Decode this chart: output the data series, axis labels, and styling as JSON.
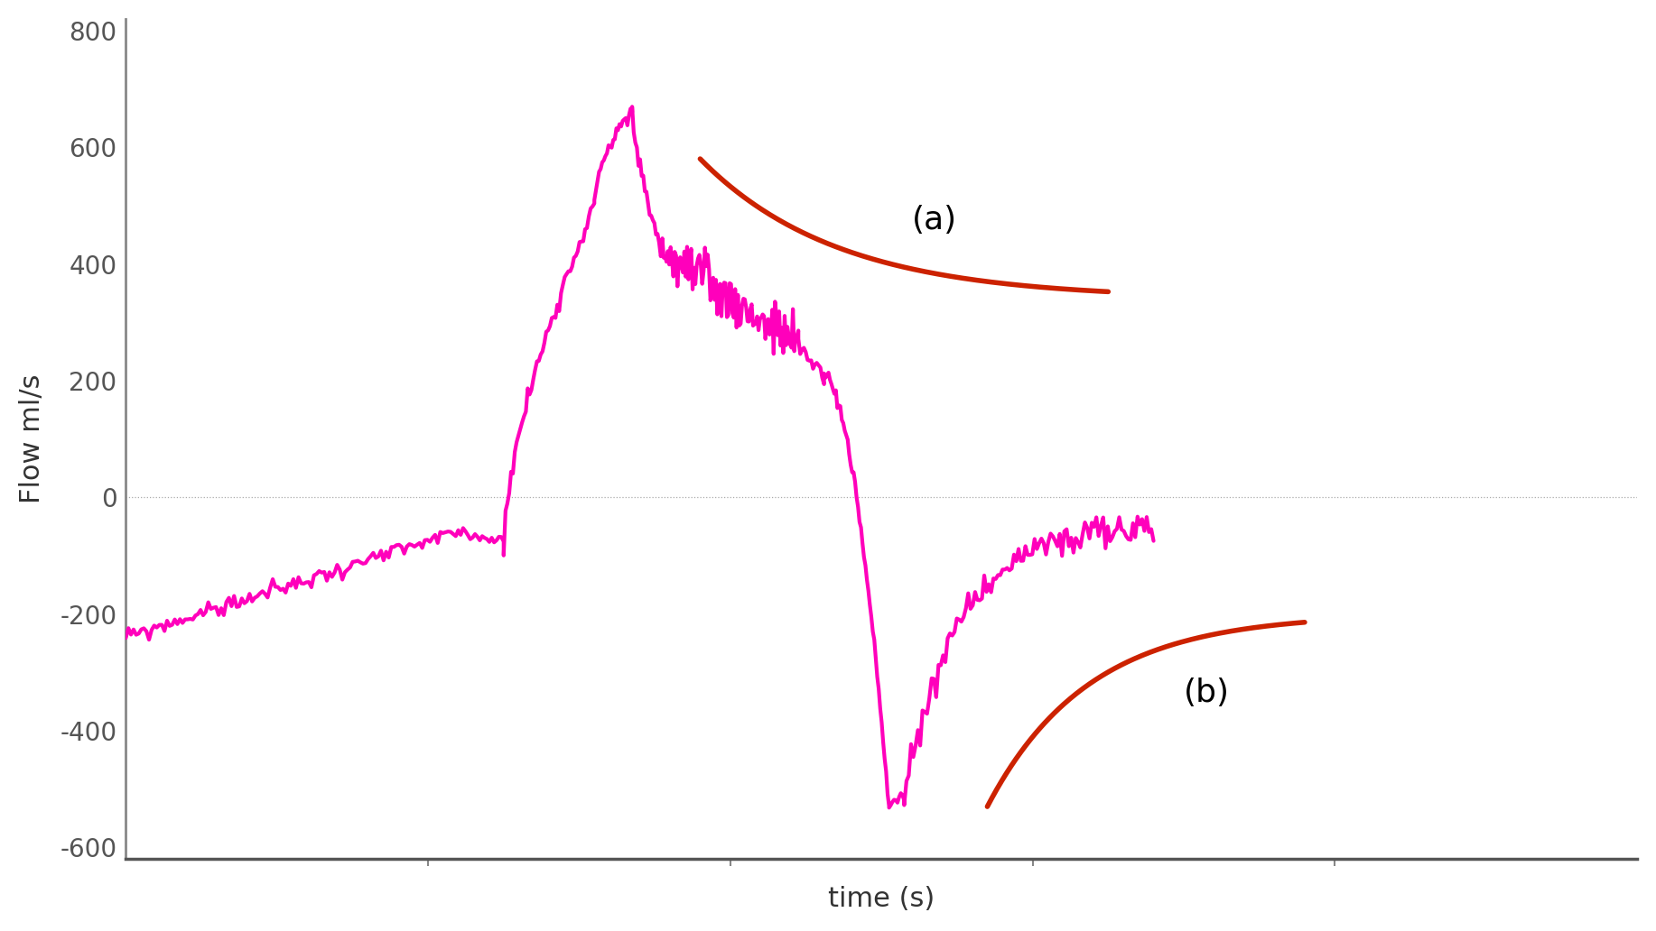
{
  "ylabel": "Flow ml/s",
  "xlabel": "time (s)",
  "ylim": [
    -620,
    820
  ],
  "xlim": [
    0,
    10
  ],
  "yticks": [
    -600,
    -400,
    -200,
    0,
    200,
    400,
    600,
    800
  ],
  "background_color": "#ffffff",
  "magenta_color": "#FF00BB",
  "red_color": "#CC2200",
  "label_a": "(a)",
  "label_b": "(b)",
  "ylabel_fontsize": 22,
  "xlabel_fontsize": 22,
  "tick_fontsize": 20,
  "label_fontsize": 26,
  "spine_color": "#888888",
  "zero_line_color": "#aaaaaa"
}
